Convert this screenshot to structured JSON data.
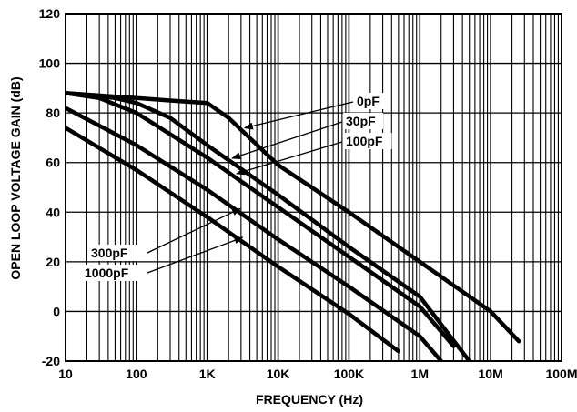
{
  "chart_data": {
    "type": "line",
    "title": "",
    "xlabel": "FREQUENCY (Hz)",
    "ylabel": "OPEN LOOP VOLTAGE GAIN (dB)",
    "xscale": "log",
    "xlim": [
      10,
      100000000
    ],
    "ylim": [
      -20,
      120
    ],
    "grid": true,
    "x_ticks": [
      {
        "value": 10,
        "label": "10"
      },
      {
        "value": 100,
        "label": "100"
      },
      {
        "value": 1000,
        "label": "1K"
      },
      {
        "value": 10000,
        "label": "10K"
      },
      {
        "value": 100000,
        "label": "100K"
      },
      {
        "value": 1000000,
        "label": "1M"
      },
      {
        "value": 10000000,
        "label": "10M"
      },
      {
        "value": 100000000,
        "label": "100M"
      }
    ],
    "y_ticks": [
      {
        "value": 120,
        "label": "120"
      },
      {
        "value": 100,
        "label": "100"
      },
      {
        "value": 80,
        "label": "80"
      },
      {
        "value": 60,
        "label": "60"
      },
      {
        "value": 40,
        "label": "40"
      },
      {
        "value": 20,
        "label": "20"
      },
      {
        "value": 0,
        "label": "0"
      },
      {
        "value": -20,
        "label": "-20"
      }
    ],
    "series": [
      {
        "name": "0pF",
        "x": [
          10,
          100,
          300,
          1000,
          2000,
          10000,
          100000,
          1000000,
          10000000,
          25000000
        ],
        "y": [
          88,
          86,
          85,
          84,
          78,
          59,
          40,
          20,
          0,
          -12
        ],
        "label_anchor": 3000
      },
      {
        "name": "30pF",
        "x": [
          10,
          50,
          100,
          300,
          1000,
          10000,
          100000,
          1000000,
          5000000
        ],
        "y": [
          88,
          86,
          84,
          78,
          67,
          47,
          26,
          6,
          -20
        ],
        "label_anchor": 2000
      },
      {
        "name": "100pF",
        "x": [
          10,
          30,
          100,
          1000,
          10000,
          100000,
          1000000,
          3000000
        ],
        "y": [
          88,
          86,
          80,
          62,
          42,
          22,
          2,
          -14
        ],
        "label_anchor": 2300
      },
      {
        "name": "300pF",
        "x": [
          10,
          100,
          1000,
          10000,
          100000,
          1000000,
          2000000
        ],
        "y": [
          82,
          67,
          49,
          29,
          10,
          -10,
          -20
        ],
        "label_anchor": 2600
      },
      {
        "name": "1000pF",
        "x": [
          10,
          100,
          1000,
          10000,
          100000,
          500000
        ],
        "y": [
          74,
          57,
          38,
          18,
          -1,
          -16
        ],
        "label_anchor": 2800
      }
    ],
    "annotations": [
      {
        "text": "0pF",
        "series": "0pF"
      },
      {
        "text": "30pF",
        "series": "30pF"
      },
      {
        "text": "100pF",
        "series": "100pF"
      },
      {
        "text": "300pF",
        "series": "300pF"
      },
      {
        "text": "1000pF",
        "series": "1000pF"
      }
    ]
  }
}
